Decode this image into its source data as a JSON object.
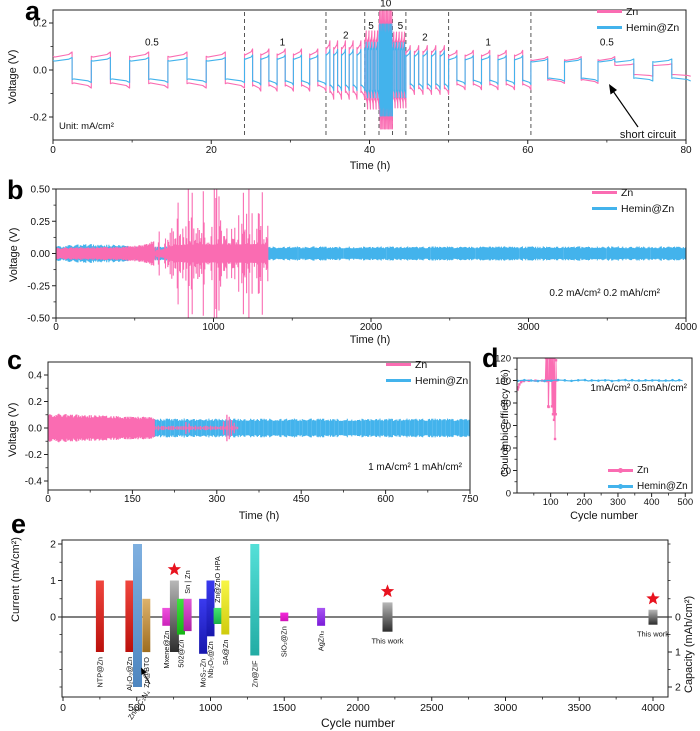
{
  "colors": {
    "zn": "#fa6cb2",
    "hemin": "#43b3ec",
    "star": "#e8131f",
    "axis": "#222222"
  },
  "legend": {
    "zn": "Zn",
    "hemin": "Hemin@Zn"
  },
  "panels": {
    "a": "a",
    "b": "b",
    "c": "c",
    "d": "d",
    "e": "e"
  },
  "chart_data": [
    {
      "panel": "a",
      "type": "line",
      "xlabel": "Time (h)",
      "ylabel": "Voltage (V)",
      "xlim": [
        0,
        80.6
      ],
      "ylim": [
        -0.3,
        0.26
      ],
      "xticks": [
        [
          0,
          "0"
        ],
        [
          20,
          "20"
        ],
        [
          40,
          "40"
        ],
        [
          60,
          "60"
        ],
        [
          80,
          "80"
        ]
      ],
      "yticks": [
        [
          0.2,
          "0.2"
        ],
        [
          0,
          "0.0"
        ],
        [
          -0.2,
          "-0.2"
        ]
      ],
      "legend": [
        "Zn",
        "Hemin@Zn"
      ],
      "legend_pos": "top-right",
      "unit_note": "Unit: mA/cm²",
      "annotation": "short circuit",
      "rate_labels": [
        {
          "x": 12.5,
          "v": 0.105,
          "t": "0.5"
        },
        {
          "x": 29,
          "v": 0.105,
          "t": "1"
        },
        {
          "x": 37,
          "v": 0.135,
          "t": "2"
        },
        {
          "x": 40.2,
          "v": 0.175,
          "t": "5"
        },
        {
          "x": 42.05,
          "v": 0.27,
          "t": "10"
        },
        {
          "x": 43.9,
          "v": 0.175,
          "t": "5"
        },
        {
          "x": 47,
          "v": 0.125,
          "t": "2"
        },
        {
          "x": 55,
          "v": 0.105,
          "t": "1"
        },
        {
          "x": 70,
          "v": 0.105,
          "t": "0.5"
        }
      ],
      "dashed_x": [
        24.2,
        34.5,
        39.4,
        41.2,
        42.9,
        44.6,
        50,
        60.4
      ],
      "segments": [
        {
          "t0": 0,
          "t1": 24.2,
          "period": 4.84,
          "zn": 0.075,
          "hemin": 0.052
        },
        {
          "t0": 24.2,
          "t1": 34.5,
          "period": 2.06,
          "zn": 0.088,
          "hemin": 0.063
        },
        {
          "t0": 34.5,
          "t1": 39.4,
          "period": 0.98,
          "zn": 0.122,
          "hemin": 0.086
        },
        {
          "t0": 39.4,
          "t1": 41.2,
          "period": 0.36,
          "zn": 0.163,
          "hemin": 0.116
        },
        {
          "t0": 41.2,
          "t1": 42.9,
          "period": 0.17,
          "zn": 0.246,
          "hemin": 0.192
        },
        {
          "t0": 42.9,
          "t1": 44.6,
          "period": 0.34,
          "zn": 0.158,
          "hemin": 0.115
        },
        {
          "t0": 44.6,
          "t1": 50,
          "period": 1.08,
          "zn": 0.102,
          "hemin": 0.08
        },
        {
          "t0": 50,
          "t1": 60.4,
          "period": 2.08,
          "zn": 0.082,
          "hemin": 0.06
        },
        {
          "t0": 60.4,
          "t1": 71,
          "period": 4.24,
          "zn": 0.056,
          "hemin": 0.047
        },
        {
          "t0": 71,
          "t1": 80.6,
          "period": 4.8,
          "zn": 0.026,
          "hemin": 0.046
        }
      ]
    },
    {
      "panel": "b",
      "type": "line",
      "xlabel": "Time (h)",
      "ylabel": "Voltage (V)",
      "xlim": [
        0,
        4000
      ],
      "ylim": [
        -0.5,
        0.5
      ],
      "xticks": [
        [
          0,
          "0"
        ],
        [
          1000,
          "1000"
        ],
        [
          2000,
          "2000"
        ],
        [
          3000,
          "3000"
        ],
        [
          4000,
          "4000"
        ]
      ],
      "yticks": [
        [
          0.5,
          "0.50"
        ],
        [
          0.25,
          "0.25"
        ],
        [
          0,
          "0.00"
        ],
        [
          -0.25,
          "-0.25"
        ],
        [
          -0.5,
          "-0.50"
        ]
      ],
      "legend": [
        "Zn",
        "Hemin@Zn"
      ],
      "legend_pos": "top-right",
      "condition": "0.2 mA/cm²  0.2 mAh/cm²",
      "hemin_band": [
        [
          0,
          0.055
        ],
        [
          80,
          0.06
        ],
        [
          200,
          0.068
        ],
        [
          400,
          0.062
        ],
        [
          500,
          0.05
        ],
        [
          4000,
          0.05
        ]
      ],
      "zn_band": [
        [
          0,
          0.042
        ],
        [
          400,
          0.048
        ],
        [
          550,
          0.06
        ],
        [
          620,
          0.09
        ],
        [
          680,
          0.2
        ],
        [
          720,
          0.34
        ],
        [
          800,
          0.44
        ],
        [
          1000,
          0.46
        ],
        [
          1340,
          0.48
        ]
      ],
      "zn_end": 1345,
      "zn_spiky_from": 620
    },
    {
      "panel": "c",
      "type": "line",
      "xlabel": "Time (h)",
      "ylabel": "Voltage (V)",
      "xlim": [
        0,
        750
      ],
      "ylim": [
        -0.5,
        0.52
      ],
      "xticks": [
        [
          0,
          "0"
        ],
        [
          150,
          "150"
        ],
        [
          300,
          "300"
        ],
        [
          450,
          "450"
        ],
        [
          600,
          "600"
        ],
        [
          750,
          "750"
        ]
      ],
      "yticks": [
        [
          0.4,
          "0.4"
        ],
        [
          0.2,
          "0.2"
        ],
        [
          0,
          "0.0"
        ],
        [
          -0.2,
          "-0.2"
        ],
        [
          -0.4,
          "-0.4"
        ]
      ],
      "legend": [
        "Zn",
        "Hemin@Zn"
      ],
      "legend_pos": "top-right",
      "condition": "1 mA/cm²  1 mAh/cm²",
      "hemin_amp": 0.065,
      "zn_main": {
        "from": 0,
        "to": 190,
        "amp_start": 0.1,
        "amp_end": 0.075
      },
      "zn_tail": {
        "from": 190,
        "to": 338,
        "amp": 0.014
      },
      "zn_spikes": [
        [
          245,
          0.045
        ],
        [
          251,
          0.034
        ],
        [
          312,
          0.05
        ],
        [
          318,
          0.1
        ],
        [
          322,
          0.085
        ],
        [
          326,
          0.06
        ],
        [
          331,
          0.04
        ]
      ]
    },
    {
      "panel": "d",
      "type": "scatter-line",
      "xlabel": "Cycle number",
      "ylabel": "Coulombic effiency (%)",
      "xlim": [
        0,
        520
      ],
      "ylim": [
        0,
        122
      ],
      "xticks": [
        [
          100,
          "100"
        ],
        [
          200,
          "200"
        ],
        [
          300,
          "300"
        ],
        [
          400,
          "400"
        ],
        [
          500,
          "500"
        ]
      ],
      "yticks": [
        [
          0,
          "0"
        ],
        [
          20,
          "20"
        ],
        [
          40,
          "40"
        ],
        [
          60,
          "60"
        ],
        [
          80,
          "80"
        ],
        [
          100,
          "100"
        ],
        [
          120,
          "120"
        ]
      ],
      "legend": [
        "Zn",
        "Hemin@Zn"
      ],
      "legend_pos": "bottom-right",
      "condition": "1mA/cm²  0.5mAh/cm²",
      "hemin_series": {
        "x_start": 2,
        "x_end": 500,
        "y": 100
      },
      "zn_points": [
        [
          2,
          92
        ],
        [
          4,
          94
        ],
        [
          7,
          96.5
        ],
        [
          12,
          98.5
        ],
        [
          20,
          99.5
        ],
        [
          35,
          99.8
        ],
        [
          55,
          99.9
        ],
        [
          75,
          99.9
        ],
        [
          84,
          100
        ],
        [
          86,
          120
        ],
        [
          87,
          100
        ],
        [
          88,
          121
        ],
        [
          89,
          99.5
        ],
        [
          90,
          120
        ],
        [
          91,
          100
        ],
        [
          92,
          121
        ],
        [
          93,
          77
        ],
        [
          94,
          76.5
        ],
        [
          95,
          100
        ],
        [
          96,
          120.5
        ],
        [
          97,
          100
        ],
        [
          98,
          119.5
        ],
        [
          99,
          100
        ],
        [
          100,
          121
        ],
        [
          101,
          100
        ],
        [
          102,
          120
        ],
        [
          103,
          100
        ],
        [
          104,
          77
        ],
        [
          105,
          120
        ],
        [
          106,
          100
        ],
        [
          107,
          70
        ],
        [
          108,
          120.5
        ],
        [
          109,
          100
        ],
        [
          110,
          65
        ],
        [
          111,
          120
        ],
        [
          112,
          100
        ],
        [
          113,
          48
        ],
        [
          114,
          100
        ],
        [
          115,
          70
        ],
        [
          116,
          118
        ],
        [
          117,
          100
        ]
      ]
    },
    {
      "panel": "e",
      "type": "bar",
      "xlabel": "Cycle number",
      "ylabel_left": "Current (mA/cm²)",
      "ylabel_right": "Capacity (mAh/cm²)",
      "xlim": [
        0,
        4100
      ],
      "xticks": [
        [
          0,
          "0"
        ],
        [
          500,
          "500"
        ],
        [
          1000,
          "1000"
        ],
        [
          1500,
          "1500"
        ],
        [
          2000,
          "2000"
        ],
        [
          2500,
          "2500"
        ],
        [
          3000,
          "3000"
        ],
        [
          3500,
          "3500"
        ],
        [
          4000,
          "4000"
        ]
      ],
      "yticks_left": [
        [
          0,
          "0"
        ],
        [
          1,
          "1"
        ],
        [
          2,
          "2"
        ]
      ],
      "yticks_right": [
        [
          0,
          "0"
        ],
        [
          1,
          "1"
        ],
        [
          2,
          "2"
        ]
      ],
      "bars": [
        {
          "label": "NTP@Zn",
          "cycles": 250,
          "current": 1.0,
          "capacity": 1.0,
          "color": "red",
          "pos": "below"
        },
        {
          "label": "Al₂O₃@Zn",
          "cycles": 450,
          "current": 1.0,
          "capacity": 1.0,
          "color": "red",
          "pos": "below"
        },
        {
          "label": "Zn/g-C₃N₄",
          "cycles": 505,
          "current": 2.0,
          "capacity": 2.0,
          "color": "steel",
          "pos": "callout",
          "w": 9
        },
        {
          "label": "Zn@BTO",
          "cycles": 565,
          "current": 0.5,
          "capacity": 1.0,
          "color": "tan",
          "pos": "below"
        },
        {
          "label": "Mxene@Zn",
          "cycles": 700,
          "current": 0.25,
          "capacity": 0.25,
          "color": "magenta",
          "pos": "below"
        },
        {
          "label": "",
          "cycles": 755,
          "current": 1.0,
          "capacity": 1.0,
          "color": "gray",
          "star": true,
          "w": 9
        },
        {
          "label": "502@Zn",
          "cycles": 800,
          "current": 0.5,
          "capacity": 0.5,
          "color": "green",
          "pos": "below"
        },
        {
          "label": "Sn | Zn",
          "cycles": 845,
          "current": 0.5,
          "capacity": 0.4,
          "color": "orchid",
          "pos": "above"
        },
        {
          "label": "MoS₂-Zn",
          "cycles": 950,
          "current": 0.5,
          "capacity": 1.05,
          "color": "blue",
          "pos": "below"
        },
        {
          "label": "Nb₂O₅@Zn",
          "cycles": 1000,
          "current": 1.0,
          "capacity": 0.55,
          "color": "blue",
          "pos": "below"
        },
        {
          "label": "Zn@ZnO HPA",
          "cycles": 1048,
          "current": 0.25,
          "capacity": 0.2,
          "color": "green2",
          "pos": "above"
        },
        {
          "label": "SA@Zn",
          "cycles": 1100,
          "current": 1.0,
          "capacity": 0.5,
          "color": "yellow",
          "pos": "below"
        },
        {
          "label": "Zn@ZIF",
          "cycles": 1300,
          "current": 2.0,
          "capacity": 1.1,
          "color": "cyan",
          "pos": "below",
          "w": 9
        },
        {
          "label": "SiO₂@Zn",
          "cycles": 1500,
          "current": 0.12,
          "capacity": 0.12,
          "color": "magenta2",
          "pos": "below"
        },
        {
          "label": "AgZn₃",
          "cycles": 1750,
          "current": 0.25,
          "capacity": 0.25,
          "color": "purple",
          "pos": "below"
        },
        {
          "label": "This work",
          "cycles": 2200,
          "current": 0.4,
          "capacity": 0.42,
          "color": "gray",
          "star": true,
          "pos": "hbelow",
          "w": 10
        },
        {
          "label": "This work",
          "cycles": 4000,
          "current": 0.2,
          "capacity": 0.22,
          "color": "gray",
          "star": true,
          "pos": "hbelow",
          "w": 9
        }
      ],
      "palette": {
        "red": [
          "#f0463e",
          "#bb100b"
        ],
        "steel": [
          "#7fb0e0",
          "#4e86c0"
        ],
        "tan": [
          "#ddb26b",
          "#9e6d1f"
        ],
        "magenta": [
          "#ef52de",
          "#cb22ba"
        ],
        "gray": [
          "#b8b8b8",
          "#2d2d2d"
        ],
        "green": [
          "#3fe03f",
          "#16b216"
        ],
        "orchid": [
          "#e059d6",
          "#ad20a3"
        ],
        "blue": [
          "#3a3aef",
          "#1717ad"
        ],
        "green2": [
          "#44e470",
          "#19b148"
        ],
        "yellow": [
          "#f8f646",
          "#cfcb0e"
        ],
        "cyan": [
          "#55e0d8",
          "#22aca4"
        ],
        "magenta2": [
          "#f428da",
          "#d012b8"
        ],
        "purple": [
          "#a855f2",
          "#7a1bd8"
        ]
      }
    }
  ]
}
